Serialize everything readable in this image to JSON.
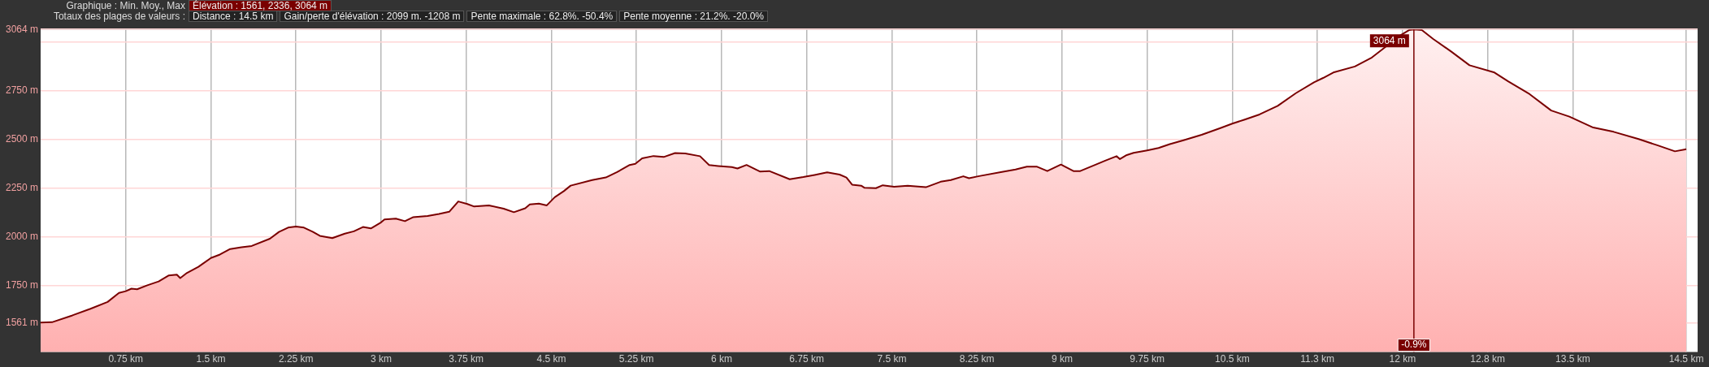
{
  "chart_data": {
    "type": "area",
    "annotations": [
      "Graphique : Min. Moy., Max",
      "Élévation : 1561, 2336, 3064 m",
      "Totaux des plages de valeurs :",
      "Distance : 14.5 km",
      "Gain/perte d'élévation : 2099 m. -1208 m",
      "Pente maximale : 62.8%. -50.4%",
      "Pente moyenne : 21.2%. -20.0%",
      {
        "text": "3064 m",
        "x": 12.1,
        "y": 3064
      },
      {
        "text": "-0.9%",
        "x": 12.1
      }
    ],
    "x": [
      0,
      0.1,
      0.28,
      0.44,
      0.59,
      0.69,
      0.75,
      0.8,
      0.85,
      0.94,
      1.04,
      1.13,
      1.2,
      1.23,
      1.29,
      1.39,
      1.5,
      1.58,
      1.67,
      1.77,
      1.86,
      2.02,
      2.1,
      2.18,
      2.25,
      2.32,
      2.4,
      2.46,
      2.57,
      2.68,
      2.76,
      2.84,
      2.91,
      3.0,
      3.03,
      3.13,
      3.21,
      3.28,
      3.41,
      3.51,
      3.6,
      3.68,
      3.76,
      3.82,
      3.95,
      4.08,
      4.17,
      4.27,
      4.31,
      4.39,
      4.46,
      4.53,
      4.61,
      4.67,
      4.86,
      4.98,
      5.08,
      5.19,
      5.24,
      5.3,
      5.4,
      5.49,
      5.59,
      5.68,
      5.81,
      5.89,
      5.97,
      6.09,
      6.14,
      6.22,
      6.34,
      6.42,
      6.6,
      6.72,
      6.82,
      6.93,
      7.04,
      7.1,
      7.15,
      7.23,
      7.26,
      7.36,
      7.42,
      7.52,
      7.64,
      7.8,
      7.93,
      8.02,
      8.13,
      8.18,
      8.27,
      8.47,
      8.59,
      8.69,
      8.78,
      8.87,
      8.99,
      9.1,
      9.16,
      9.29,
      9.38,
      9.48,
      9.51,
      9.57,
      9.63,
      9.75,
      9.85,
      9.95,
      10.07,
      10.23,
      10.39,
      10.5,
      10.61,
      10.74,
      10.9,
      11.06,
      11.22,
      11.3,
      11.39,
      11.58,
      11.73,
      11.85,
      11.98,
      12.06,
      12.1,
      12.17,
      12.27,
      12.43,
      12.59,
      12.81,
      12.93,
      13.12,
      13.31,
      13.47,
      13.68,
      13.86,
      14.08,
      14.25,
      14.4,
      14.5
    ],
    "series": [
      {
        "color": "#7a0000",
        "values": [
          1561,
          1563,
          1598,
          1632,
          1667,
          1713,
          1722,
          1735,
          1732,
          1752,
          1772,
          1803,
          1807,
          1789,
          1816,
          1847,
          1892,
          1910,
          1938,
          1947,
          1954,
          1991,
          2026,
          2048,
          2053,
          2048,
          2026,
          2006,
          1994,
          2017,
          2029,
          2051,
          2044,
          2075,
          2090,
          2094,
          2081,
          2101,
          2108,
          2118,
          2129,
          2182,
          2169,
          2156,
          2162,
          2145,
          2127,
          2147,
          2167,
          2171,
          2162,
          2204,
          2235,
          2263,
          2292,
          2305,
          2333,
          2369,
          2375,
          2403,
          2415,
          2410,
          2430,
          2428,
          2414,
          2369,
          2364,
          2358,
          2351,
          2369,
          2335,
          2338,
          2296,
          2307,
          2318,
          2331,
          2320,
          2305,
          2268,
          2263,
          2252,
          2250,
          2265,
          2257,
          2263,
          2255,
          2283,
          2292,
          2311,
          2301,
          2312,
          2333,
          2346,
          2360,
          2360,
          2338,
          2371,
          2338,
          2338,
          2369,
          2391,
          2414,
          2399,
          2420,
          2431,
          2444,
          2456,
          2476,
          2496,
          2524,
          2557,
          2581,
          2602,
          2628,
          2672,
          2737,
          2793,
          2815,
          2843,
          2874,
          2920,
          2974,
          3033,
          3061,
          3064,
          3061,
          3015,
          2950,
          2880,
          2843,
          2798,
          2732,
          2648,
          2617,
          2561,
          2539,
          2502,
          2469,
          2439,
          2450
        ]
      }
    ],
    "xlim": [
      0,
      14.6
    ],
    "ylim": [
      1410,
      3064
    ],
    "xticks": [
      {
        "value": 0.75,
        "label": "0.75 km"
      },
      {
        "value": 1.5,
        "label": "1.5 km"
      },
      {
        "value": 2.25,
        "label": "2.25 km"
      },
      {
        "value": 3,
        "label": "3 km"
      },
      {
        "value": 3.75,
        "label": "3.75 km"
      },
      {
        "value": 4.5,
        "label": "4.5 km"
      },
      {
        "value": 5.25,
        "label": "5.25 km"
      },
      {
        "value": 6,
        "label": "6 km"
      },
      {
        "value": 6.75,
        "label": "6.75 km"
      },
      {
        "value": 7.5,
        "label": "7.5 km"
      },
      {
        "value": 8.25,
        "label": "8.25 km"
      },
      {
        "value": 9,
        "label": "9 km"
      },
      {
        "value": 9.75,
        "label": "9.75 km"
      },
      {
        "value": 10.5,
        "label": "10.5 km"
      },
      {
        "value": 11.25,
        "label": "11.3 km"
      },
      {
        "value": 12,
        "label": "12 km"
      },
      {
        "value": 12.75,
        "label": "12.8 km"
      },
      {
        "value": 13.5,
        "label": "13.5 km"
      },
      {
        "value": 14.5,
        "label": "14.5 km"
      }
    ],
    "yticks": [
      {
        "value": 1561,
        "label": "1561 m"
      },
      {
        "value": 1750,
        "label": "1750 m"
      },
      {
        "value": 2000,
        "label": "2000 m"
      },
      {
        "value": 2250,
        "label": "2250 m"
      },
      {
        "value": 2500,
        "label": "2500 m"
      },
      {
        "value": 2750,
        "label": "2750 m"
      },
      {
        "value": 3000,
        "label": null
      },
      {
        "value": 3064,
        "label": "3064 m"
      }
    ],
    "ref_lines": [
      {
        "axis": "x",
        "value": 12.1,
        "color": "#7a0000"
      }
    ],
    "grid": true,
    "legend": false,
    "marker": "none",
    "line_style": "solid"
  }
}
